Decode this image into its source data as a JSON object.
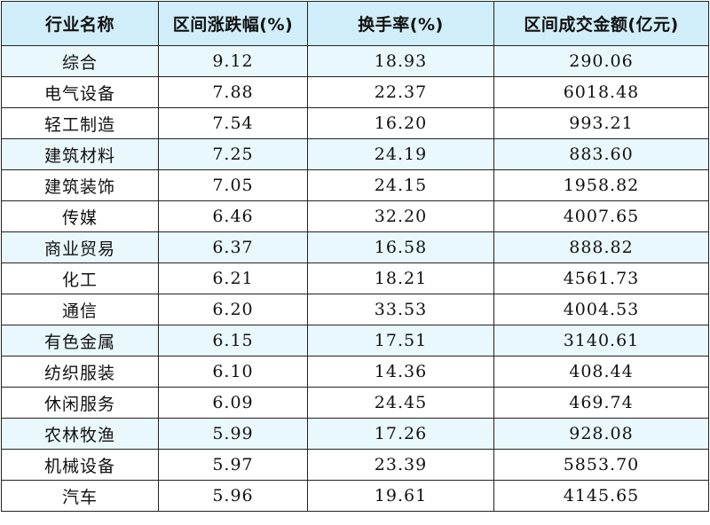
{
  "table": {
    "headers": [
      "行业名称",
      "区间涨跌幅(%)",
      "换手率(%)",
      "区间成交金额(亿元)"
    ],
    "rows": [
      {
        "industry": "综合",
        "change": "9.12",
        "turnover": "18.93",
        "amount": "290.06"
      },
      {
        "industry": "电气设备",
        "change": "7.88",
        "turnover": "22.37",
        "amount": "6018.48"
      },
      {
        "industry": "轻工制造",
        "change": "7.54",
        "turnover": "16.20",
        "amount": "993.21"
      },
      {
        "industry": "建筑材料",
        "change": "7.25",
        "turnover": "24.19",
        "amount": "883.60"
      },
      {
        "industry": "建筑装饰",
        "change": "7.05",
        "turnover": "24.15",
        "amount": "1958.82"
      },
      {
        "industry": "传媒",
        "change": "6.46",
        "turnover": "32.20",
        "amount": "4007.65"
      },
      {
        "industry": "商业贸易",
        "change": "6.37",
        "turnover": "16.58",
        "amount": "888.82"
      },
      {
        "industry": "化工",
        "change": "6.21",
        "turnover": "18.21",
        "amount": "4561.73"
      },
      {
        "industry": "通信",
        "change": "6.20",
        "turnover": "33.53",
        "amount": "4004.53"
      },
      {
        "industry": "有色金属",
        "change": "6.15",
        "turnover": "17.51",
        "amount": "3140.61"
      },
      {
        "industry": "纺织服装",
        "change": "6.10",
        "turnover": "14.36",
        "amount": "408.44"
      },
      {
        "industry": "休闲服务",
        "change": "6.09",
        "turnover": "24.45",
        "amount": "469.74"
      },
      {
        "industry": "农林牧渔",
        "change": "5.99",
        "turnover": "17.26",
        "amount": "928.08"
      },
      {
        "industry": "机械设备",
        "change": "5.97",
        "turnover": "23.39",
        "amount": "5853.70"
      },
      {
        "industry": "汽车",
        "change": "5.96",
        "turnover": "19.61",
        "amount": "4145.65"
      }
    ]
  },
  "colors": {
    "header_bg": "#cfeef9",
    "alt_row_bg": "#e9f8fc",
    "border": "#222222"
  }
}
